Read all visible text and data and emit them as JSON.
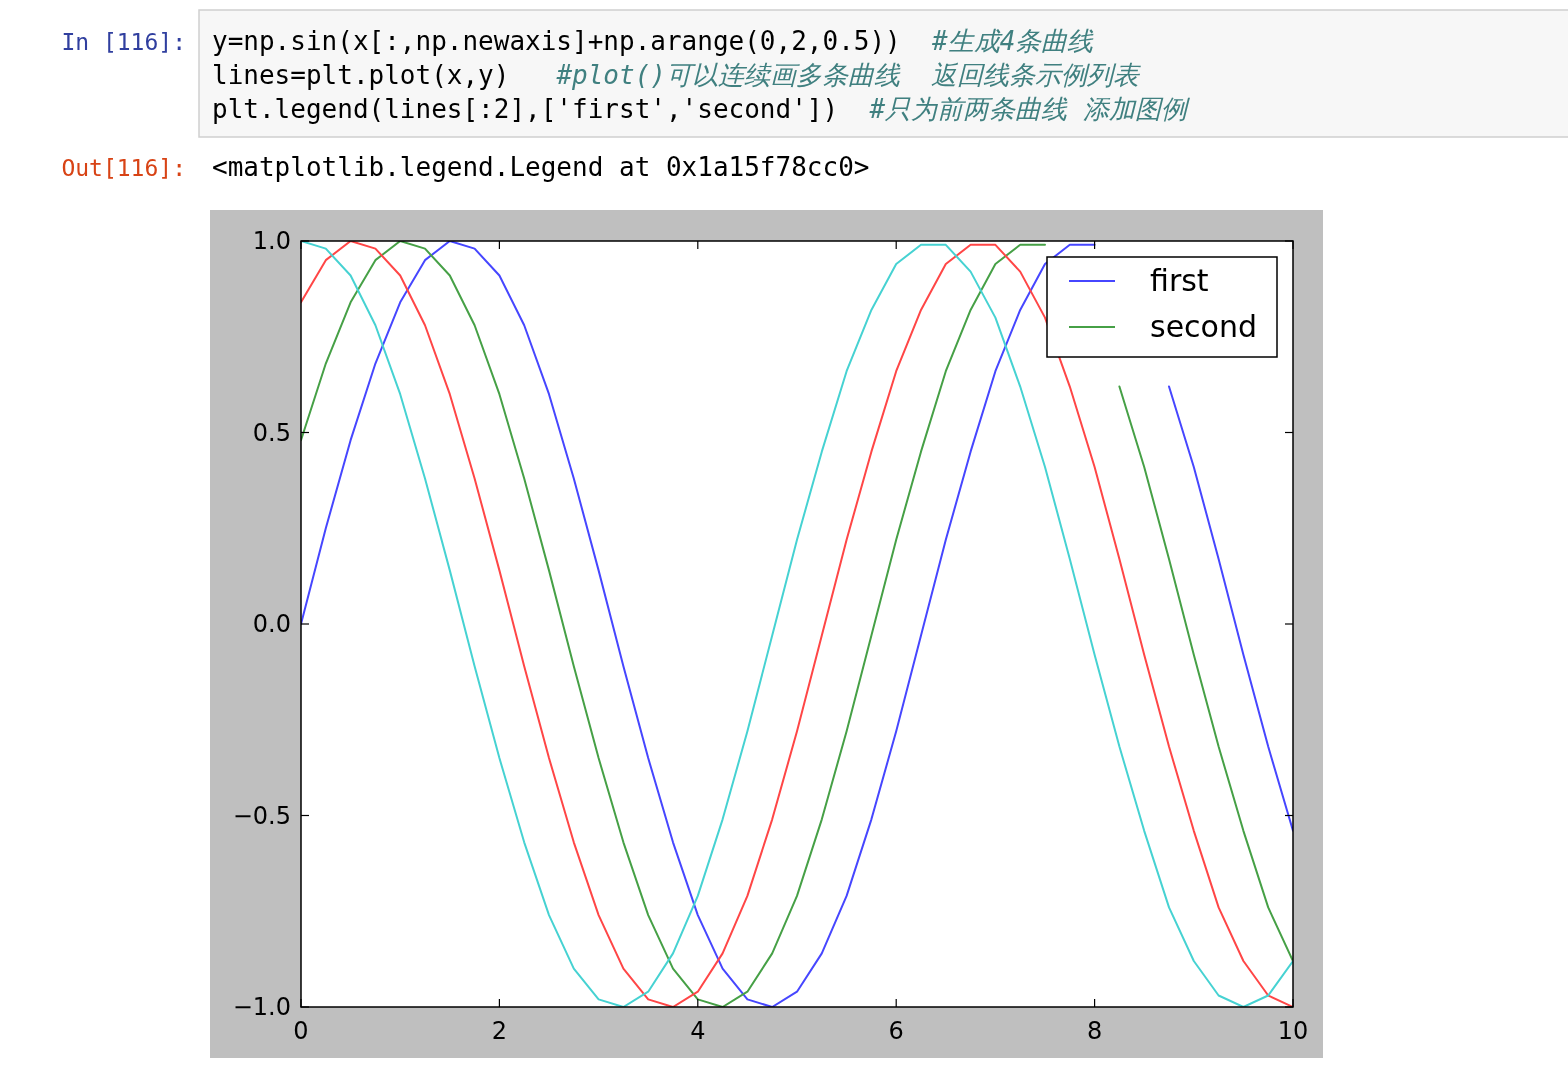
{
  "chart_data": {
    "type": "line",
    "x": [
      0,
      0.25,
      0.5,
      0.75,
      1,
      1.25,
      1.5,
      1.75,
      2,
      2.25,
      2.5,
      2.75,
      3,
      3.25,
      3.5,
      3.75,
      4,
      4.25,
      4.5,
      4.75,
      5,
      5.25,
      5.5,
      5.75,
      6,
      6.25,
      6.5,
      6.75,
      7,
      7.25,
      7.5,
      7.75,
      8,
      8.25,
      8.5,
      8.75,
      9,
      9.25,
      9.5,
      9.75,
      10
    ],
    "series": [
      {
        "name": "first",
        "color": "#4646ff",
        "values": [
          0.0,
          0.25,
          0.48,
          0.68,
          0.84,
          0.95,
          1.0,
          0.98,
          0.91,
          0.78,
          0.6,
          0.38,
          0.14,
          -0.11,
          -0.35,
          -0.57,
          -0.76,
          -0.9,
          -0.98,
          -1.0,
          -0.96,
          -0.86,
          -0.71,
          -0.51,
          -0.28,
          -0.03,
          0.22,
          0.45,
          0.66,
          0.82,
          0.94,
          0.99,
          0.99,
          null,
          null,
          0.62,
          0.41,
          0.17,
          -0.08,
          -0.32,
          -0.54
        ]
      },
      {
        "name": "second",
        "color": "#46a046",
        "values": [
          0.48,
          0.68,
          0.84,
          0.95,
          1.0,
          0.98,
          0.91,
          0.78,
          0.6,
          0.38,
          0.14,
          -0.11,
          -0.35,
          -0.57,
          -0.76,
          -0.9,
          -0.98,
          -1.0,
          -0.96,
          -0.86,
          -0.71,
          -0.51,
          -0.28,
          -0.03,
          0.22,
          0.45,
          0.66,
          0.82,
          0.94,
          0.99,
          0.99,
          null,
          null,
          0.62,
          0.41,
          0.17,
          -0.08,
          -0.32,
          -0.54,
          -0.74,
          -0.88
        ]
      },
      {
        "color": "#ff4646",
        "values": [
          0.84,
          0.95,
          1.0,
          0.98,
          0.91,
          0.78,
          0.6,
          0.38,
          0.14,
          -0.11,
          -0.35,
          -0.57,
          -0.76,
          -0.9,
          -0.98,
          -1.0,
          -0.96,
          -0.86,
          -0.71,
          -0.51,
          -0.28,
          -0.03,
          0.22,
          0.45,
          0.66,
          0.82,
          0.94,
          0.99,
          0.99,
          0.92,
          0.8,
          0.62,
          0.41,
          0.17,
          -0.08,
          -0.32,
          -0.54,
          -0.74,
          -0.88,
          -0.97,
          -1.0
        ]
      },
      {
        "color": "#46d2d2",
        "values": [
          1.0,
          0.98,
          0.91,
          0.78,
          0.6,
          0.38,
          0.14,
          -0.11,
          -0.35,
          -0.57,
          -0.76,
          -0.9,
          -0.98,
          -1.0,
          -0.96,
          -0.86,
          -0.71,
          -0.51,
          -0.28,
          -0.03,
          0.22,
          0.45,
          0.66,
          0.82,
          0.94,
          0.99,
          0.99,
          0.92,
          0.8,
          0.62,
          0.41,
          0.17,
          -0.08,
          -0.32,
          -0.54,
          -0.74,
          -0.88,
          -0.97,
          -1.0,
          -0.97,
          -0.88
        ]
      }
    ],
    "xlim": [
      0,
      10
    ],
    "ylim": [
      -1,
      1
    ],
    "xticks": [
      0,
      2,
      4,
      6,
      8,
      10
    ],
    "yticks": [
      {
        "value": -1,
        "label": "−1.0"
      },
      {
        "value": -0.5,
        "label": "−0.5"
      },
      {
        "value": 0,
        "label": "0.0"
      },
      {
        "value": 0.5,
        "label": "0.5"
      },
      {
        "value": 1,
        "label": "1.0"
      }
    ],
    "legend": "top right",
    "annotations": [
      "In [116]:",
      "y=np.sin(x[:,np.newaxis]+np.arange(0,2,0.5))  #生成4条曲线",
      "lines=plt.plot(x,y)   #plot()可以连续画多条曲线  返回线条示例列表",
      "plt.legend(lines[:2],['first','second'])  #只为前两条曲线 添加图例",
      "Out[116]:",
      "<matplotlib.legend.Legend at 0x1a15f78cc0>"
    ]
  }
}
